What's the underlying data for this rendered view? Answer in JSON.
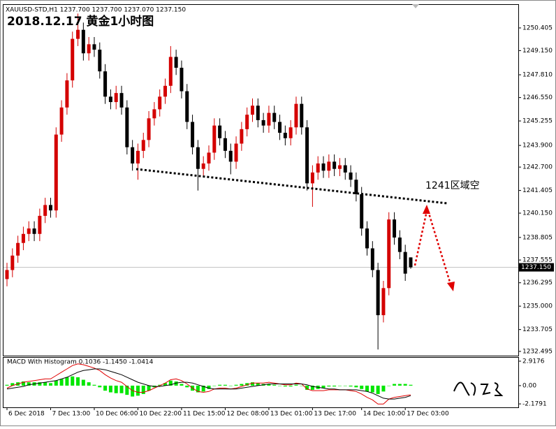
{
  "chart_data": [
    {
      "type": "candlestick",
      "header": "XAUUSD-STD,H1  1237.700 1237.700 1237.070 1237.150",
      "title": "2018.12.17 黄金1小时图",
      "annotation": "1241区域空",
      "categories": [
        "6 Dec 2018",
        null,
        null,
        null,
        null,
        null,
        null,
        null,
        "7 Dec 13:00",
        null,
        null,
        null,
        null,
        null,
        null,
        null,
        "10 Dec 06:00",
        null,
        null,
        null,
        null,
        null,
        null,
        null,
        "10 Dec 22:00",
        null,
        null,
        null,
        null,
        null,
        null,
        null,
        "11 Dec 15:00",
        null,
        null,
        null,
        null,
        null,
        null,
        null,
        "12 Dec 08:00",
        null,
        null,
        null,
        null,
        null,
        null,
        null,
        "13 Dec 01:00",
        null,
        null,
        null,
        null,
        null,
        null,
        null,
        "13 Dec 17:00",
        null,
        null,
        null,
        null,
        null,
        null,
        null,
        null,
        "14 Dec 10:00",
        null,
        null,
        null,
        null,
        null,
        null,
        null,
        "17 Dec 03:00",
        null
      ],
      "open": [
        1236.5,
        1237.0,
        1237.8,
        1238.5,
        1239.0,
        1239.3,
        1239.0,
        1240.0,
        1240.6,
        1240.3,
        1244.5,
        1246.0,
        1247.5,
        1249.8,
        1250.3,
        1249.0,
        1249.5,
        1249.2,
        1248.0,
        1246.6,
        1246.3,
        1246.8,
        1246.0,
        1243.8,
        1242.9,
        1243.6,
        1244.2,
        1245.4,
        1245.9,
        1246.6,
        1247.2,
        1248.8,
        1248.2,
        1246.9,
        1245.2,
        1243.8,
        1242.6,
        1242.9,
        1243.5,
        1245.0,
        1244.3,
        1243.6,
        1243.0,
        1244.0,
        1244.8,
        1245.6,
        1246.1,
        1245.3,
        1245.0,
        1245.7,
        1245.2,
        1244.6,
        1244.3,
        1244.9,
        1246.2,
        1244.9,
        1241.8,
        1242.4,
        1242.9,
        1242.5,
        1243.0,
        1242.6,
        1242.8,
        1242.4,
        1242.0,
        1241.2,
        1239.3,
        1238.2,
        1237.0,
        1234.5,
        1236.0,
        1239.8,
        1238.8,
        1238.0,
        1237.7
      ],
      "high": [
        1237.4,
        1238.2,
        1238.9,
        1239.4,
        1239.7,
        1239.7,
        1240.4,
        1241.0,
        1241.0,
        1244.9,
        1246.4,
        1247.9,
        1250.2,
        1251.2,
        1250.7,
        1249.9,
        1249.9,
        1249.6,
        1248.4,
        1247.0,
        1247.2,
        1247.2,
        1246.4,
        1244.2,
        1244.0,
        1244.6,
        1245.8,
        1246.3,
        1247.0,
        1247.6,
        1249.4,
        1249.2,
        1248.6,
        1247.3,
        1245.6,
        1244.2,
        1243.3,
        1243.9,
        1245.4,
        1245.4,
        1244.7,
        1244.0,
        1244.4,
        1245.2,
        1246.0,
        1246.5,
        1246.5,
        1245.7,
        1246.1,
        1246.1,
        1245.6,
        1245.0,
        1245.3,
        1246.6,
        1246.6,
        1245.3,
        1242.8,
        1243.3,
        1243.3,
        1243.4,
        1243.4,
        1243.2,
        1243.2,
        1242.8,
        1242.4,
        1241.6,
        1239.7,
        1238.6,
        1237.4,
        1236.4,
        1240.2,
        1240.2,
        1239.2,
        1238.4,
        1237.7
      ],
      "low": [
        1236.1,
        1236.6,
        1237.4,
        1238.1,
        1238.6,
        1238.6,
        1238.6,
        1239.6,
        1239.9,
        1239.9,
        1244.1,
        1245.6,
        1247.1,
        1249.4,
        1248.6,
        1248.6,
        1248.8,
        1247.6,
        1246.2,
        1245.9,
        1245.9,
        1245.6,
        1243.4,
        1242.5,
        1242.0,
        1243.2,
        1243.8,
        1245.0,
        1245.5,
        1246.2,
        1246.8,
        1247.8,
        1246.5,
        1244.8,
        1243.4,
        1241.4,
        1242.2,
        1242.5,
        1243.1,
        1243.9,
        1243.2,
        1242.3,
        1242.6,
        1243.6,
        1244.4,
        1245.2,
        1244.9,
        1244.6,
        1244.6,
        1244.8,
        1244.2,
        1243.9,
        1243.9,
        1244.5,
        1244.5,
        1241.4,
        1240.5,
        1242.0,
        1242.1,
        1242.1,
        1242.2,
        1242.2,
        1242.0,
        1241.6,
        1240.8,
        1238.9,
        1237.8,
        1236.6,
        1232.6,
        1234.1,
        1235.6,
        1238.4,
        1237.6,
        1236.4,
        1237.07
      ],
      "close": [
        1237.0,
        1237.8,
        1238.5,
        1239.0,
        1239.3,
        1239.0,
        1240.0,
        1240.6,
        1240.3,
        1244.5,
        1246.0,
        1247.5,
        1249.8,
        1250.3,
        1249.0,
        1249.5,
        1249.2,
        1248.0,
        1246.6,
        1246.3,
        1246.8,
        1246.0,
        1243.8,
        1242.9,
        1243.6,
        1244.2,
        1245.4,
        1245.9,
        1246.6,
        1247.2,
        1248.8,
        1248.2,
        1246.9,
        1245.2,
        1243.8,
        1242.6,
        1242.9,
        1243.5,
        1245.0,
        1244.3,
        1243.6,
        1243.0,
        1244.0,
        1244.8,
        1245.6,
        1246.1,
        1245.3,
        1245.0,
        1245.7,
        1245.2,
        1244.6,
        1244.3,
        1244.9,
        1246.2,
        1244.9,
        1241.8,
        1242.4,
        1242.9,
        1242.5,
        1243.0,
        1242.6,
        1242.8,
        1242.4,
        1242.0,
        1241.2,
        1239.3,
        1238.2,
        1237.0,
        1234.5,
        1236.0,
        1239.8,
        1238.8,
        1238.0,
        1236.8,
        1237.15
      ],
      "up_color": "#d40000",
      "down_color": "#000000",
      "ylim": [
        1232.26,
        1251.68
      ],
      "yticks": [
        1250.405,
        {
          "value": 1249.15,
          "label": "1249.150"
        },
        {
          "value": 1247.81,
          "label": "1247.810"
        },
        {
          "value": 1246.55,
          "label": "1246.550"
        },
        1245.255,
        {
          "value": 1243.9,
          "label": "1243.900"
        },
        {
          "value": 1242.7,
          "label": "1242.700"
        },
        1241.405,
        {
          "value": 1240.15,
          "label": "1240.150"
        },
        1238.805,
        1237.555,
        1236.295,
        {
          "value": 1235,
          "label": "1235.000"
        },
        1233.705,
        1232.495
      ],
      "last_price": {
        "value": 1237.15,
        "label": "1237.150"
      }
    },
    {
      "type": "macd",
      "title": "MACD With Histogram 0.1036 -1.1450 -1.0414",
      "series": [
        {
          "type": "bar",
          "color": "#00e600",
          "values": [
            0.1,
            0.3,
            0.4,
            0.5,
            0.4,
            0.4,
            0.4,
            0.4,
            0.3,
            0.6,
            0.8,
            1.0,
            1.1,
            1.0,
            0.7,
            0.4,
            0.1,
            -0.2,
            -0.6,
            -0.8,
            -0.9,
            -0.9,
            -1.1,
            -1.3,
            -1.2,
            -1.0,
            -0.6,
            -0.2,
            0.1,
            0.3,
            0.6,
            0.5,
            0.2,
            -0.2,
            -0.6,
            -0.8,
            -0.7,
            -0.4,
            0.0,
            0.1,
            0.1,
            0.0,
            0.1,
            0.2,
            0.3,
            0.4,
            0.3,
            0.2,
            0.2,
            0.1,
            0.0,
            -0.1,
            -0.1,
            0.1,
            0.0,
            -0.5,
            -0.5,
            -0.4,
            -0.3,
            -0.1,
            -0.1,
            0.0,
            0.0,
            -0.1,
            -0.2,
            -0.4,
            -0.7,
            -0.8,
            -1.0,
            -0.7,
            0.0,
            0.2,
            0.2,
            0.2,
            0.1
          ]
        },
        {
          "type": "line",
          "color": "#e00000",
          "values": [
            -0.3,
            0.0,
            0.2,
            0.4,
            0.5,
            0.6,
            0.7,
            0.8,
            0.8,
            1.2,
            1.6,
            2.0,
            2.4,
            2.6,
            2.5,
            2.3,
            2.1,
            1.8,
            1.3,
            0.9,
            0.6,
            0.4,
            -0.1,
            -0.6,
            -0.8,
            -0.8,
            -0.6,
            -0.3,
            0.0,
            0.3,
            0.7,
            0.8,
            0.6,
            0.2,
            -0.3,
            -0.7,
            -0.8,
            -0.7,
            -0.4,
            -0.3,
            -0.3,
            -0.4,
            -0.3,
            -0.1,
            0.1,
            0.3,
            0.3,
            0.3,
            0.4,
            0.3,
            0.2,
            0.1,
            0.1,
            0.3,
            0.2,
            -0.4,
            -0.6,
            -0.6,
            -0.6,
            -0.5,
            -0.5,
            -0.5,
            -0.5,
            -0.6,
            -0.7,
            -1.0,
            -1.4,
            -1.7,
            -2.2,
            -2.2,
            -1.6,
            -1.4,
            -1.3,
            -1.2,
            -1.1
          ]
        },
        {
          "type": "line",
          "color": "#000000",
          "values": [
            -0.4,
            -0.3,
            -0.2,
            -0.1,
            0.1,
            0.2,
            0.3,
            0.4,
            0.5,
            0.6,
            0.8,
            1.0,
            1.3,
            1.6,
            1.8,
            1.9,
            2.0,
            2.0,
            1.9,
            1.7,
            1.5,
            1.3,
            1.0,
            0.7,
            0.4,
            0.2,
            0.0,
            -0.1,
            -0.1,
            0.0,
            0.1,
            0.3,
            0.4,
            0.4,
            0.3,
            0.1,
            -0.1,
            -0.3,
            -0.4,
            -0.4,
            -0.4,
            -0.4,
            -0.4,
            -0.3,
            -0.2,
            -0.1,
            0.0,
            0.1,
            0.2,
            0.2,
            0.2,
            0.2,
            0.2,
            0.2,
            0.2,
            0.1,
            -0.1,
            -0.2,
            -0.3,
            -0.4,
            -0.4,
            -0.5,
            -0.5,
            -0.5,
            -0.5,
            -0.6,
            -0.7,
            -0.9,
            -1.2,
            -1.5,
            -1.6,
            -1.6,
            -1.5,
            -1.4,
            -1.2
          ]
        }
      ],
      "ylim": [
        -2.59,
        3.33
      ],
      "yticks": [
        2.9176,
        {
          "value": 0,
          "label": "0.00"
        },
        -2.1791
      ]
    }
  ]
}
